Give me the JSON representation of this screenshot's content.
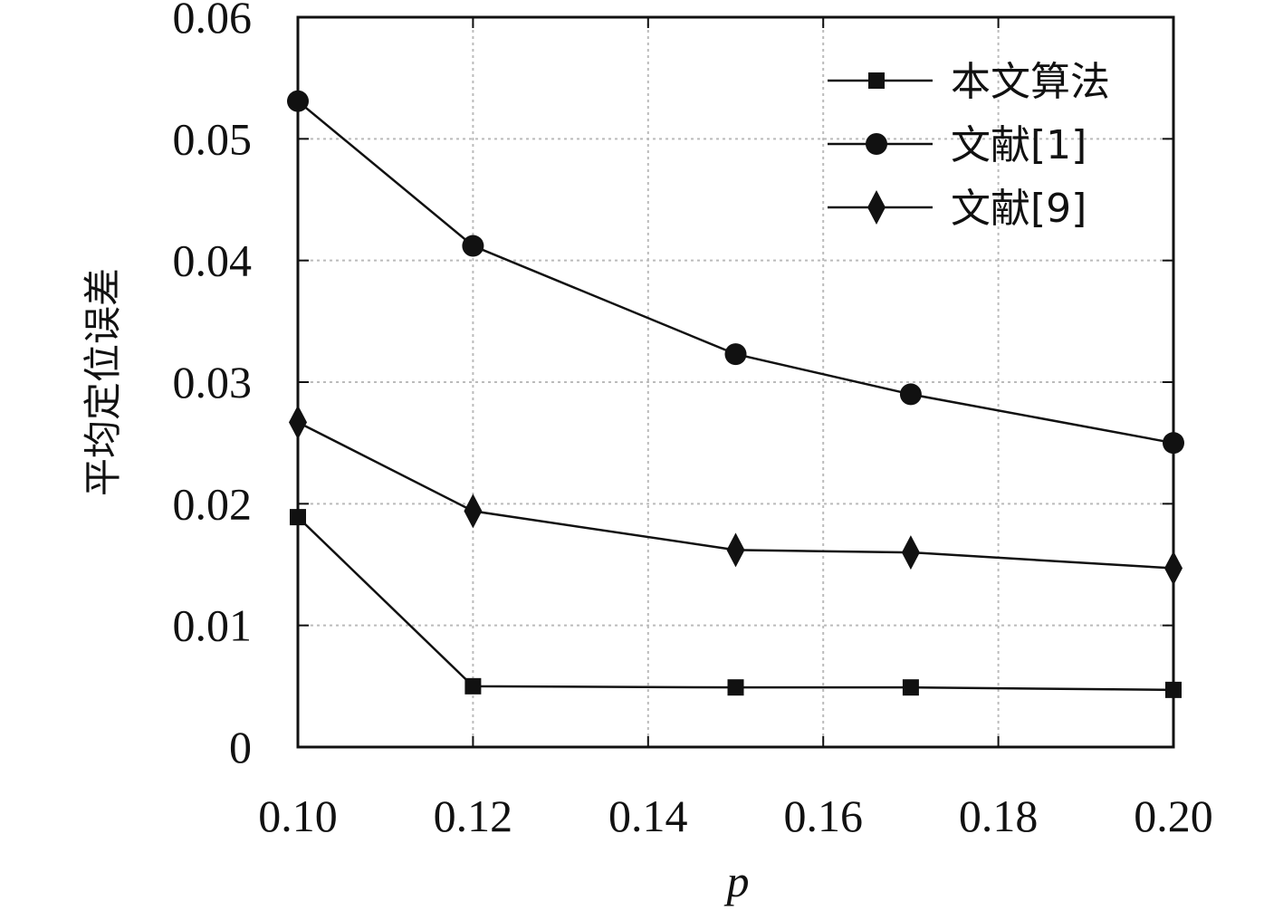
{
  "chart_data": {
    "type": "line",
    "title": "",
    "xlabel": "p",
    "ylabel": "平均定位误差",
    "x": [
      0.1,
      0.12,
      0.15,
      0.17,
      0.2
    ],
    "xlim": [
      0.1,
      0.2
    ],
    "ylim": [
      0,
      0.06
    ],
    "xticks": [
      "0.10",
      "0.12",
      "0.14",
      "0.16",
      "0.18",
      "0.20"
    ],
    "yticks": [
      "0",
      "0.01",
      "0.02",
      "0.03",
      "0.04",
      "0.05",
      "0.06"
    ],
    "grid": true,
    "legend_position": "top-right",
    "series": [
      {
        "name": "本文算法",
        "marker": "square",
        "color": "#111111",
        "values": [
          0.0189,
          0.005,
          0.0049,
          0.0049,
          0.0047
        ]
      },
      {
        "name": "文献[1]",
        "marker": "circle",
        "color": "#111111",
        "values": [
          0.0531,
          0.0412,
          0.0323,
          0.029,
          0.025
        ]
      },
      {
        "name": "文献[9]",
        "marker": "diamond",
        "color": "#111111",
        "values": [
          0.0267,
          0.0194,
          0.0162,
          0.016,
          0.0147
        ]
      }
    ]
  }
}
